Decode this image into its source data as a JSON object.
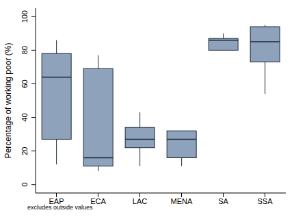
{
  "chart_data": {
    "type": "box",
    "categories": [
      "EAP",
      "ECA",
      "LAC",
      "MENA",
      "SA",
      "SSA"
    ],
    "boxes": [
      {
        "min": 12,
        "q1": 27,
        "median": 64,
        "q3": 78,
        "max": 86
      },
      {
        "min": 8,
        "q1": 11,
        "median": 16,
        "q3": 69,
        "max": 77
      },
      {
        "min": 11,
        "q1": 22,
        "median": 27,
        "q3": 34,
        "max": 43
      },
      {
        "min": 11,
        "q1": 16,
        "median": 27,
        "q3": 32,
        "max": 32
      },
      {
        "min": 80,
        "q1": 80,
        "median": 86,
        "q3": 87,
        "max": 90
      },
      {
        "min": 54,
        "q1": 73,
        "median": 85,
        "q3": 94,
        "max": 95
      }
    ],
    "ylabel": "Percentage of working poor (%)",
    "annotation": "excludes outside values",
    "ylim": [
      -5,
      105
    ],
    "yticks": [
      0,
      20,
      40,
      60,
      80,
      100
    ],
    "color": "#8ea2bb",
    "grid": false
  }
}
